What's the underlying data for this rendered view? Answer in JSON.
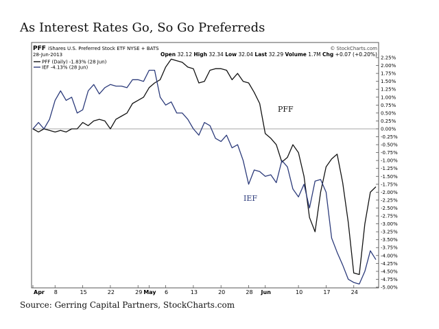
{
  "title": "As Interest Rates Go, So Go Preferreds",
  "source": "Source: Gerring Capital Partners, StockCharts.com",
  "header": {
    "symbol": "PFF",
    "name": "iShares U.S. Preferred Stock ETF NYSE + BATS",
    "date": "28-Jun-2013",
    "copyright": "© StockCharts.com",
    "quote": {
      "open_label": "Open",
      "open": "32.12",
      "high_label": "High",
      "high": "32.34",
      "low_label": "Low",
      "low": "32.04",
      "last_label": "Last",
      "last": "32.29",
      "volume_label": "Volume",
      "volume": "1.7M",
      "chg_label": "Chg",
      "chg": "+0.07 (+0.20%)"
    }
  },
  "colors": {
    "pff": "#111111",
    "ief": "#2b3a7a",
    "zero_line": "#888888",
    "grid": "#e8e8e8"
  },
  "chart_data": {
    "type": "line",
    "title": "",
    "xlabel": "",
    "ylabel": "",
    "ylim": [
      -5.0,
      2.25
    ],
    "yticks": [
      2.25,
      2.0,
      1.75,
      1.5,
      1.25,
      1.0,
      0.75,
      0.5,
      0.25,
      0.0,
      -0.25,
      -0.5,
      -0.75,
      -1.0,
      -1.25,
      -1.5,
      -1.75,
      -2.0,
      -2.25,
      -2.5,
      -2.75,
      -3.0,
      -3.25,
      -3.5,
      -3.75,
      -4.0,
      -4.25,
      -4.5,
      -4.75,
      -5.0
    ],
    "ytick_labels": [
      "2.25%",
      "2.00%",
      "1.75%",
      "1.50%",
      "1.25%",
      "1.00%",
      "0.75%",
      "0.50%",
      "0.25%",
      "0.00%",
      "-0.25%",
      "-0.50%",
      "-0.75%",
      "-1.00%",
      "-1.25%",
      "-1.50%",
      "-1.75%",
      "-2.00%",
      "-2.25%",
      "-2.50%",
      "-2.75%",
      "-3.00%",
      "-3.25%",
      "-3.50%",
      "-3.75%",
      "-4.00%",
      "-4.25%",
      "-4.50%",
      "-4.75%",
      "-5.00%"
    ],
    "xticks": [
      {
        "label": "Apr",
        "bold": true,
        "i": 0
      },
      {
        "label": "8",
        "bold": false,
        "i": 4
      },
      {
        "label": "15",
        "bold": false,
        "i": 9
      },
      {
        "label": "22",
        "bold": false,
        "i": 14
      },
      {
        "label": "29",
        "bold": false,
        "i": 19
      },
      {
        "label": "May",
        "bold": true,
        "i": 21
      },
      {
        "label": "6",
        "bold": false,
        "i": 24
      },
      {
        "label": "13",
        "bold": false,
        "i": 29
      },
      {
        "label": "20",
        "bold": false,
        "i": 34
      },
      {
        "label": "28",
        "bold": false,
        "i": 39
      },
      {
        "label": "Jun",
        "bold": true,
        "i": 42
      },
      {
        "label": "10",
        "bold": false,
        "i": 48
      },
      {
        "label": "17",
        "bold": false,
        "i": 53
      },
      {
        "label": "24",
        "bold": false,
        "i": 58
      }
    ],
    "x_count": 63,
    "series": [
      {
        "name": "PFF (Daily) -1.83% (28 Jun)",
        "values": [
          0.0,
          -0.1,
          0.0,
          -0.05,
          -0.1,
          -0.05,
          -0.1,
          0.0,
          0.0,
          0.2,
          0.1,
          0.25,
          0.3,
          0.25,
          0.0,
          0.3,
          0.4,
          0.5,
          0.8,
          0.9,
          1.0,
          1.3,
          1.45,
          1.55,
          1.95,
          2.2,
          2.15,
          2.1,
          1.95,
          1.9,
          1.45,
          1.5,
          1.85,
          1.9,
          1.9,
          1.85,
          1.55,
          1.75,
          1.5,
          1.45,
          1.15,
          0.8,
          -0.15,
          -0.3,
          -0.5,
          -1.05,
          -0.9,
          -0.5,
          -0.75,
          -1.5,
          -2.8,
          -3.25,
          -2.0,
          -1.2,
          -0.95,
          -0.8,
          -1.7,
          -2.95,
          -4.55,
          -4.6,
          -3.0,
          -2.0,
          -1.83
        ]
      },
      {
        "name": "IEF -4.13% (28 Jun)",
        "values": [
          0.0,
          0.2,
          0.0,
          0.3,
          0.9,
          1.2,
          0.9,
          1.0,
          0.5,
          0.6,
          1.2,
          1.4,
          1.1,
          1.3,
          1.4,
          1.35,
          1.35,
          1.3,
          1.55,
          1.55,
          1.5,
          1.85,
          1.85,
          1.0,
          0.75,
          0.85,
          0.5,
          0.5,
          0.3,
          0.0,
          -0.2,
          0.2,
          0.1,
          -0.3,
          -0.4,
          -0.2,
          -0.6,
          -0.5,
          -1.0,
          -1.75,
          -1.3,
          -1.35,
          -1.5,
          -1.45,
          -1.7,
          -1.0,
          -1.2,
          -1.9,
          -2.15,
          -1.75,
          -2.5,
          -1.65,
          -1.6,
          -2.0,
          -3.45,
          -3.9,
          -4.3,
          -4.75,
          -4.85,
          -4.9,
          -4.5,
          -3.85,
          -4.13
        ]
      }
    ],
    "annotations": [
      {
        "text": "PFF",
        "series": 0
      },
      {
        "text": "IEF",
        "series": 1
      }
    ]
  }
}
